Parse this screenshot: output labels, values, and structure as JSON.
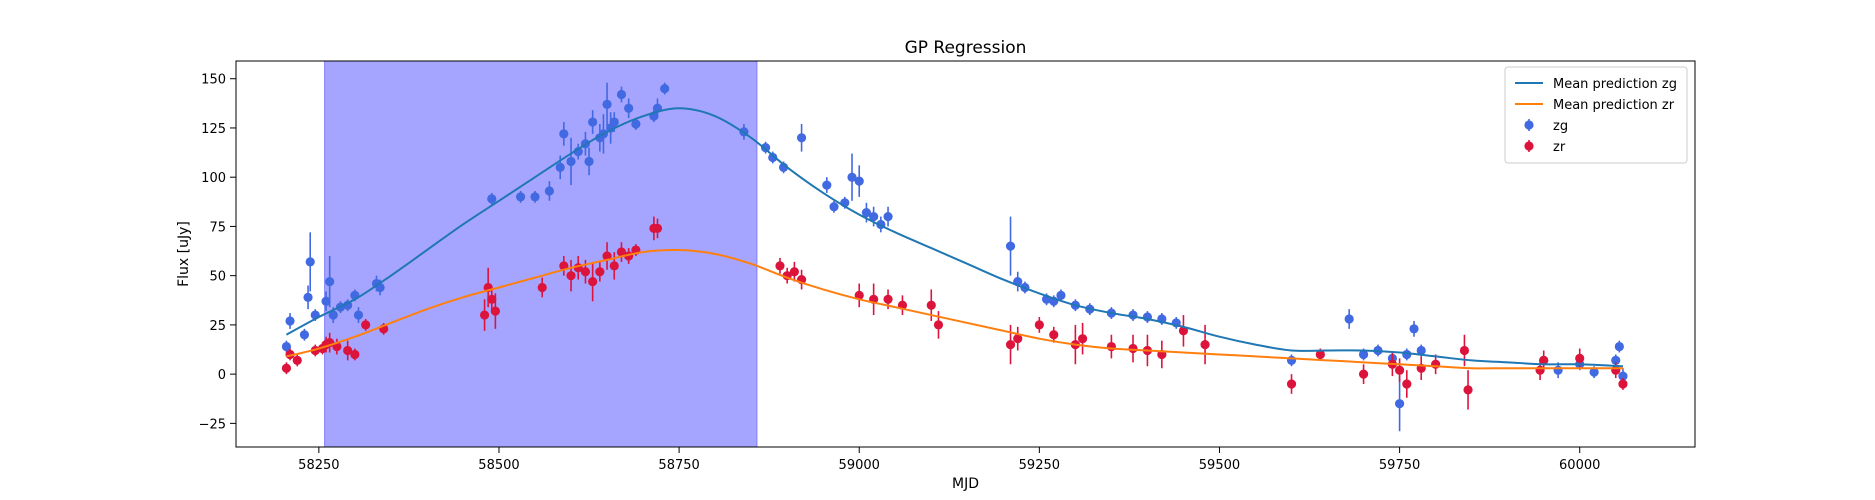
{
  "chart_data": {
    "type": "scatter",
    "title": "GP Regression",
    "xlabel": "MJD",
    "ylabel": "Flux [uJy]",
    "xlim": [
      58135,
      60160
    ],
    "ylim": [
      -37,
      159
    ],
    "xticks": [
      58250,
      58500,
      58750,
      59000,
      59250,
      59500,
      59750,
      60000
    ],
    "yticks": [
      -25,
      0,
      25,
      50,
      75,
      100,
      125,
      150
    ],
    "grid": false,
    "legend_position": "top-right",
    "shaded_region": {
      "x0": 58258,
      "x1": 58858,
      "color": "#a5a5ff"
    },
    "colors": {
      "zg_line": "#1f77b4",
      "zr_line": "#ff7f0e",
      "zg_points": "#4169e1",
      "zr_points": "#dc143c",
      "band": "#a5a5ff"
    },
    "lines": [
      {
        "name": "Mean prediction zg",
        "color": "#1f77b4",
        "x": [
          58205,
          58250,
          58300,
          58350,
          58400,
          58450,
          58500,
          58550,
          58600,
          58650,
          58700,
          58750,
          58800,
          58850,
          58900,
          58950,
          59000,
          59050,
          59100,
          59150,
          59200,
          59250,
          59300,
          59350,
          59400,
          59450,
          59500,
          59550,
          59600,
          59650,
          59700,
          59750,
          59800,
          59850,
          59900,
          59950,
          60000,
          60060
        ],
        "y": [
          20,
          29,
          38,
          50,
          63,
          76,
          88,
          100,
          112,
          123,
          131,
          135,
          131,
          120,
          105,
          92,
          81,
          72,
          64,
          56,
          48,
          41,
          35,
          31,
          28,
          24,
          19,
          15,
          12,
          12,
          12,
          11,
          9,
          7,
          6,
          5,
          5,
          4
        ]
      },
      {
        "name": "Mean prediction zr",
        "color": "#ff7f0e",
        "x": [
          58205,
          58250,
          58300,
          58350,
          58400,
          58450,
          58500,
          58550,
          58600,
          58650,
          58700,
          58750,
          58800,
          58850,
          58900,
          58950,
          59000,
          59050,
          59100,
          59150,
          59200,
          59250,
          59300,
          59350,
          59400,
          59450,
          59500,
          59550,
          59600,
          59650,
          59700,
          59750,
          59800,
          59850,
          59900,
          59950,
          60000,
          60060
        ],
        "y": [
          9,
          13,
          19,
          26,
          33,
          39,
          44,
          49,
          54,
          58,
          62,
          63,
          61,
          56,
          49,
          43,
          38,
          34,
          30,
          26,
          22,
          18,
          15,
          13,
          12,
          11,
          10,
          9,
          8,
          7,
          6,
          5,
          4,
          3,
          3,
          3,
          3,
          3
        ]
      }
    ],
    "series": [
      {
        "name": "zg",
        "color": "#4169e1",
        "x": [
          58205,
          58210,
          58230,
          58235,
          58238,
          58245,
          58260,
          58265,
          58270,
          58280,
          58290,
          58300,
          58305,
          58330,
          58335,
          58490,
          58530,
          58550,
          58570,
          58585,
          58590,
          58600,
          58610,
          58620,
          58625,
          58630,
          58640,
          58645,
          58650,
          58655,
          58660,
          58670,
          58680,
          58690,
          58715,
          58720,
          58730,
          58840,
          58870,
          58880,
          58895,
          58920,
          58955,
          58965,
          58980,
          58990,
          59000,
          59010,
          59020,
          59030,
          59040,
          59210,
          59220,
          59230,
          59260,
          59270,
          59280,
          59300,
          59320,
          59350,
          59380,
          59400,
          59420,
          59440,
          59600,
          59680,
          59700,
          59720,
          59740,
          59750,
          59760,
          59770,
          59780,
          59950,
          59970,
          60000,
          60020,
          60050,
          60055,
          60060
        ],
        "y": [
          14,
          27,
          20,
          39,
          57,
          30,
          37,
          47,
          30,
          34,
          35,
          40,
          30,
          46,
          44,
          89,
          90,
          90,
          93,
          105,
          122,
          108,
          113,
          117,
          108,
          128,
          120,
          122,
          137,
          125,
          128,
          142,
          135,
          127,
          131,
          135,
          145,
          123,
          115,
          110,
          105,
          120,
          96,
          85,
          87,
          100,
          98,
          82,
          80,
          76,
          80,
          65,
          47,
          44,
          38,
          37,
          40,
          35,
          33,
          31,
          30,
          29,
          28,
          26,
          7,
          28,
          10,
          12,
          8,
          -15,
          10,
          23,
          12,
          7,
          2,
          5,
          1,
          7,
          14,
          -1
        ],
        "err": [
          3,
          4,
          3,
          6,
          15,
          3,
          5,
          13,
          4,
          3,
          3,
          3,
          4,
          4,
          4,
          3,
          3,
          3,
          5,
          6,
          6,
          12,
          4,
          6,
          7,
          6,
          7,
          10,
          11,
          8,
          5,
          4,
          5,
          3,
          3,
          5,
          3,
          4,
          3,
          3,
          3,
          7,
          4,
          3,
          3,
          12,
          8,
          5,
          5,
          4,
          5,
          15,
          5,
          3,
          3,
          3,
          3,
          3,
          3,
          3,
          3,
          3,
          3,
          3,
          3,
          5,
          3,
          3,
          3,
          14,
          3,
          4,
          3,
          3,
          4,
          3,
          3,
          3,
          3,
          4
        ]
      },
      {
        "name": "zr",
        "color": "#dc143c",
        "x": [
          58205,
          58210,
          58220,
          58245,
          58255,
          58260,
          58265,
          58275,
          58290,
          58300,
          58315,
          58340,
          58480,
          58485,
          58490,
          58495,
          58560,
          58590,
          58600,
          58610,
          58620,
          58630,
          58640,
          58650,
          58660,
          58670,
          58680,
          58690,
          58715,
          58720,
          58890,
          58900,
          58910,
          58920,
          59000,
          59020,
          59040,
          59060,
          59100,
          59110,
          59210,
          59220,
          59250,
          59270,
          59300,
          59310,
          59350,
          59380,
          59400,
          59420,
          59450,
          59480,
          59600,
          59640,
          59700,
          59740,
          59750,
          59760,
          59780,
          59800,
          59840,
          59845,
          59945,
          59950,
          60000,
          60050,
          60060
        ],
        "y": [
          3,
          10,
          7,
          12,
          13,
          15,
          16,
          14,
          12,
          10,
          25,
          23,
          30,
          44,
          38,
          32,
          44,
          55,
          50,
          54,
          52,
          47,
          52,
          60,
          55,
          62,
          60,
          63,
          74,
          74,
          55,
          50,
          52,
          48,
          40,
          38,
          38,
          35,
          35,
          25,
          15,
          18,
          25,
          20,
          15,
          18,
          14,
          13,
          12,
          10,
          22,
          15,
          -5,
          10,
          0,
          5,
          2,
          -5,
          3,
          5,
          12,
          -8,
          2,
          7,
          8,
          2,
          -5
        ],
        "err": [
          3,
          3,
          3,
          3,
          3,
          4,
          5,
          4,
          5,
          3,
          3,
          3,
          8,
          10,
          6,
          9,
          5,
          5,
          8,
          6,
          6,
          10,
          5,
          7,
          7,
          5,
          4,
          3,
          6,
          5,
          4,
          4,
          5,
          5,
          6,
          8,
          5,
          5,
          8,
          7,
          10,
          6,
          4,
          4,
          10,
          8,
          6,
          7,
          8,
          7,
          8,
          10,
          5,
          3,
          5,
          6,
          6,
          7,
          6,
          5,
          8,
          10,
          5,
          5,
          5,
          4,
          3
        ]
      }
    ]
  }
}
